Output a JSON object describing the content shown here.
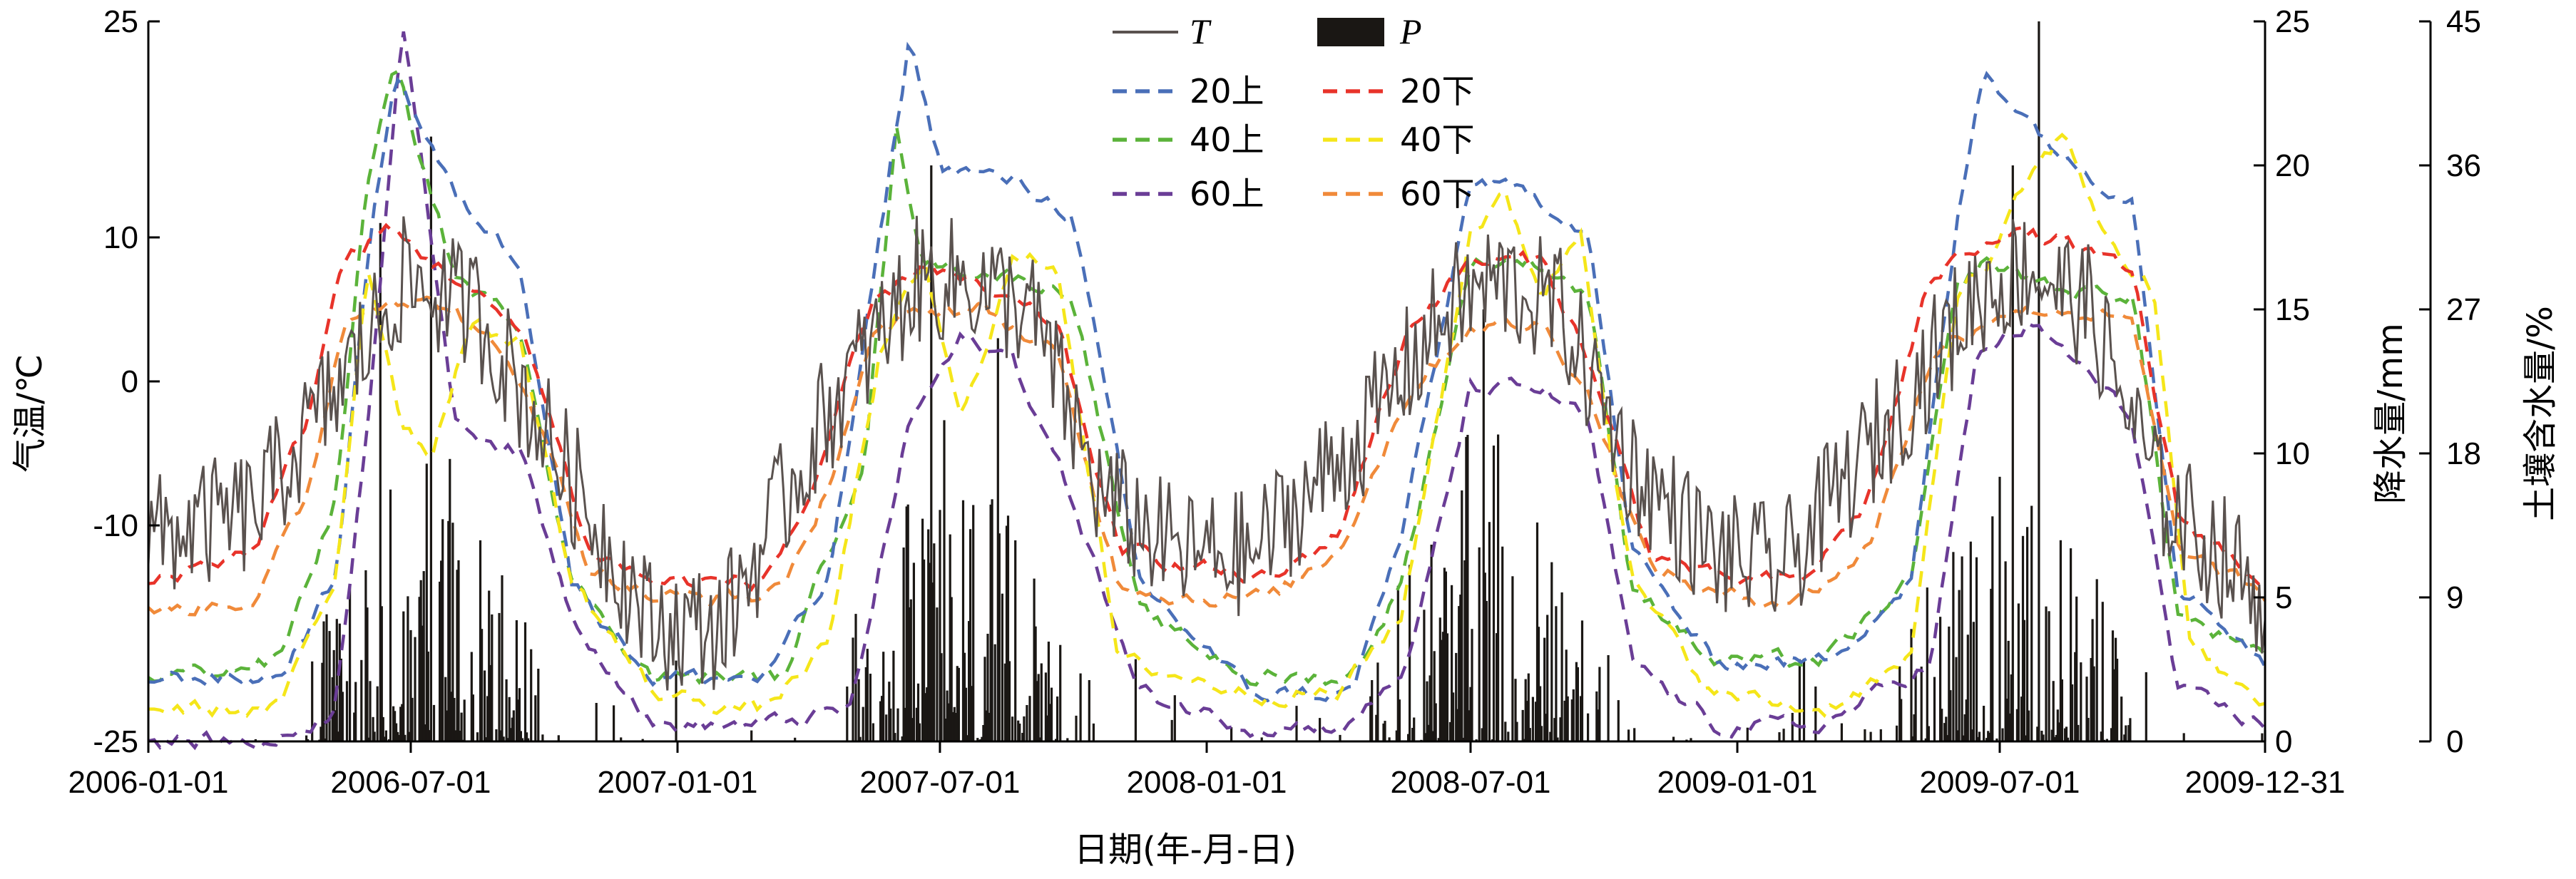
{
  "chart_data": {
    "type": "line",
    "xlabel": "日期(年-月-日)",
    "x_ticks": [
      "2006-01-01",
      "2006-07-01",
      "2007-01-01",
      "2007-07-01",
      "2008-01-01",
      "2008-07-01",
      "2009-01-01",
      "2009-07-01",
      "2009-12-31"
    ],
    "x_range": [
      "2006-01-01",
      "2009-12-31"
    ],
    "y_left": {
      "label": "气温/℃",
      "range": [
        -25,
        25
      ],
      "ticks": [
        "25",
        "10",
        "0",
        "-10",
        "-25"
      ]
    },
    "y_right1": {
      "label": "降水量/mm",
      "range": [
        0,
        25
      ],
      "ticks": [
        "25",
        "20",
        "15",
        "10",
        "5",
        "0"
      ]
    },
    "y_right2": {
      "label": "土壤含水量/%",
      "range": [
        0,
        45
      ],
      "ticks": [
        "45",
        "36",
        "27",
        "18",
        "9",
        "0"
      ]
    },
    "legend": {
      "placement": "top-center",
      "entries": [
        {
          "key": "T",
          "label": "T",
          "style": "solid",
          "color": "#5a524f"
        },
        {
          "key": "P",
          "label": "P",
          "style": "bar",
          "color": "#1a1714"
        },
        {
          "key": "20上",
          "label": "20上",
          "style": "dashed",
          "color": "#4a6fb8"
        },
        {
          "key": "20下",
          "label": "20下",
          "style": "dashed",
          "color": "#e8332a"
        },
        {
          "key": "40上",
          "label": "40上",
          "style": "dashed",
          "color": "#5bb33a"
        },
        {
          "key": "40下",
          "label": "40下",
          "style": "dashed",
          "color": "#f5e61a"
        },
        {
          "key": "60上",
          "label": "60上",
          "style": "dashed",
          "color": "#6a3d96"
        },
        {
          "key": "60下",
          "label": "60下",
          "style": "dashed",
          "color": "#f08a3a"
        }
      ]
    },
    "series_axes": {
      "T": "left",
      "P": "right1",
      "20上": "right2",
      "20下": "right2",
      "40上": "right2",
      "40下": "right2",
      "60上": "right2",
      "60下": "right2"
    },
    "series_anchor": {
      "T": {
        "dates": [
          "2006-01-01",
          "2006-03-15",
          "2006-05-15",
          "2006-06-25",
          "2006-08-15",
          "2006-10-15",
          "2006-12-15",
          "2007-02-01",
          "2007-04-15",
          "2007-06-15",
          "2007-07-20",
          "2007-09-01",
          "2007-10-20",
          "2007-12-15",
          "2008-02-01",
          "2008-04-15",
          "2008-06-15",
          "2008-07-20",
          "2008-09-01",
          "2008-10-20",
          "2008-12-15",
          "2009-02-01",
          "2009-04-15",
          "2009-06-15",
          "2009-07-20",
          "2009-09-01",
          "2009-10-20",
          "2009-12-31"
        ],
        "values": [
          -11,
          -9,
          0,
          7,
          5,
          -6,
          -17,
          -17,
          -2,
          7,
          7,
          5,
          -8,
          -12,
          -12,
          -4,
          5,
          7,
          5,
          -6,
          -12,
          -13,
          -3,
          6,
          8,
          5,
          -8,
          -15
        ]
      },
      "20上": {
        "dates": [
          "2006-01-01",
          "2006-04-01",
          "2006-05-10",
          "2006-06-01",
          "2006-06-20",
          "2006-08-01",
          "2006-09-15",
          "2006-10-20",
          "2006-12-15",
          "2007-03-01",
          "2007-04-15",
          "2007-05-15",
          "2007-06-10",
          "2007-07-01",
          "2007-08-20",
          "2007-10-01",
          "2007-11-15",
          "2008-02-01",
          "2008-04-10",
          "2008-05-15",
          "2008-07-01",
          "2008-08-15",
          "2008-09-20",
          "2008-10-20",
          "2008-12-15",
          "2009-03-01",
          "2009-05-01",
          "2009-06-01",
          "2009-06-20",
          "2009-08-20",
          "2009-10-01",
          "2009-11-01",
          "2009-12-31"
        ],
        "values": [
          4,
          4,
          10,
          30,
          42,
          34,
          30,
          10,
          4,
          4,
          10,
          28,
          44,
          36,
          35,
          33,
          10,
          3,
          3,
          13,
          35,
          34,
          32,
          12,
          5,
          5,
          10,
          32,
          42,
          36,
          34,
          10,
          5
        ]
      },
      "20下": {
        "dates": [
          "2006-01-01",
          "2006-03-15",
          "2006-04-20",
          "2006-05-15",
          "2006-06-15",
          "2006-08-01",
          "2006-09-20",
          "2006-11-01",
          "2006-12-15",
          "2007-03-01",
          "2007-04-01",
          "2007-05-15",
          "2007-06-20",
          "2007-08-01",
          "2007-09-20",
          "2007-11-01",
          "2007-12-20",
          "2008-02-15",
          "2008-04-01",
          "2008-05-20",
          "2008-07-01",
          "2008-08-20",
          "2008-09-20",
          "2008-11-01",
          "2008-12-20",
          "2009-02-15",
          "2009-04-01",
          "2009-05-15",
          "2009-07-01",
          "2009-08-20",
          "2009-10-01",
          "2009-11-01",
          "2009-12-31"
        ],
        "values": [
          10,
          12,
          20,
          30,
          32,
          29,
          25,
          12,
          10,
          10,
          15,
          27,
          30,
          28,
          26,
          12,
          11,
          10,
          13,
          26,
          30,
          30,
          24,
          12,
          10,
          10,
          15,
          29,
          32,
          31,
          29,
          14,
          10
        ]
      },
      "40上": {
        "dates": [
          "2006-01-01",
          "2006-04-01",
          "2006-05-10",
          "2006-06-01",
          "2006-06-20",
          "2006-08-01",
          "2006-09-15",
          "2006-10-20",
          "2006-12-15",
          "2007-03-15",
          "2007-05-10",
          "2007-06-01",
          "2007-06-20",
          "2007-08-20",
          "2007-10-01",
          "2007-11-15",
          "2008-02-01",
          "2008-04-10",
          "2008-05-15",
          "2008-07-01",
          "2008-08-15",
          "2008-09-20",
          "2008-10-20",
          "2008-12-15",
          "2009-03-01",
          "2009-05-01",
          "2009-06-01",
          "2009-06-20",
          "2009-08-20",
          "2009-10-01",
          "2009-11-01",
          "2009-12-31"
        ],
        "values": [
          4,
          5,
          15,
          35,
          42,
          29,
          26,
          10,
          4,
          4,
          18,
          38,
          30,
          29,
          28,
          8,
          4,
          4,
          10,
          30,
          30,
          28,
          10,
          5,
          5,
          10,
          28,
          30,
          28,
          28,
          8,
          5
        ]
      },
      "40下": {
        "dates": [
          "2006-01-01",
          "2006-04-01",
          "2006-05-10",
          "2006-06-01",
          "2006-06-25",
          "2006-07-15",
          "2006-08-10",
          "2006-09-15",
          "2006-10-20",
          "2006-12-15",
          "2007-03-01",
          "2007-04-15",
          "2007-05-20",
          "2007-06-20",
          "2007-07-15",
          "2007-08-20",
          "2007-09-20",
          "2007-11-01",
          "2008-02-01",
          "2008-04-01",
          "2008-05-15",
          "2008-07-01",
          "2008-07-25",
          "2008-08-20",
          "2008-09-15",
          "2008-10-20",
          "2008-12-15",
          "2009-03-01",
          "2009-05-01",
          "2009-06-01",
          "2009-06-25",
          "2009-07-20",
          "2009-08-15",
          "2009-09-15",
          "2009-10-15",
          "2009-11-10",
          "2009-12-31"
        ],
        "values": [
          2,
          2,
          10,
          30,
          20,
          18,
          26,
          25,
          10,
          3,
          2,
          6,
          24,
          30,
          20,
          30,
          30,
          5,
          3,
          3,
          8,
          32,
          34,
          28,
          32,
          10,
          3,
          2,
          5,
          28,
          30,
          35,
          38,
          31,
          28,
          6,
          2
        ]
      },
      "60上": {
        "dates": [
          "2006-01-01",
          "2006-04-01",
          "2006-05-10",
          "2006-06-01",
          "2006-06-25",
          "2006-08-01",
          "2006-09-15",
          "2006-10-20",
          "2006-12-15",
          "2007-03-01",
          "2007-05-01",
          "2007-06-10",
          "2007-07-15",
          "2007-08-20",
          "2007-10-01",
          "2007-11-15",
          "2008-02-01",
          "2008-04-10",
          "2008-05-20",
          "2008-07-01",
          "2008-08-20",
          "2008-09-20",
          "2008-10-20",
          "2008-12-15",
          "2009-03-01",
          "2009-05-15",
          "2009-06-15",
          "2009-07-20",
          "2009-08-20",
          "2009-10-01",
          "2009-11-01",
          "2009-12-31"
        ],
        "values": [
          0,
          0,
          2,
          20,
          45,
          20,
          18,
          8,
          1,
          1,
          2,
          20,
          25,
          24,
          15,
          3,
          1,
          1,
          5,
          22,
          22,
          20,
          5,
          1,
          1,
          5,
          24,
          26,
          24,
          20,
          3,
          1
        ]
      },
      "60下": {
        "dates": [
          "2006-01-01",
          "2006-03-15",
          "2006-04-20",
          "2006-05-15",
          "2006-06-15",
          "2006-08-01",
          "2006-09-20",
          "2006-11-01",
          "2006-12-15",
          "2007-03-01",
          "2007-04-01",
          "2007-05-15",
          "2007-06-20",
          "2007-08-01",
          "2007-09-20",
          "2007-11-01",
          "2007-12-20",
          "2008-02-15",
          "2008-04-01",
          "2008-05-20",
          "2008-07-01",
          "2008-08-20",
          "2008-09-20",
          "2008-11-01",
          "2008-12-20",
          "2009-02-15",
          "2009-04-01",
          "2009-05-15",
          "2009-07-01",
          "2009-08-20",
          "2009-10-01",
          "2009-11-01",
          "2009-12-31"
        ],
        "values": [
          8,
          9,
          15,
          26,
          28,
          27,
          22,
          11,
          9,
          9,
          12,
          25,
          27,
          27,
          24,
          10,
          9,
          9,
          12,
          22,
          26,
          26,
          22,
          11,
          9,
          9,
          12,
          24,
          27,
          27,
          26,
          12,
          9
        ]
      }
    },
    "P_notable_peaks_mm": [
      {
        "date": "2006-07-15",
        "value": 21
      },
      {
        "date": "2006-06-10",
        "value": 18
      },
      {
        "date": "2007-06-25",
        "value": 20
      },
      {
        "date": "2007-08-10",
        "value": 14
      },
      {
        "date": "2008-07-10",
        "value": 15
      },
      {
        "date": "2009-07-28",
        "value": 25
      },
      {
        "date": "2009-07-10",
        "value": 20
      }
    ]
  }
}
